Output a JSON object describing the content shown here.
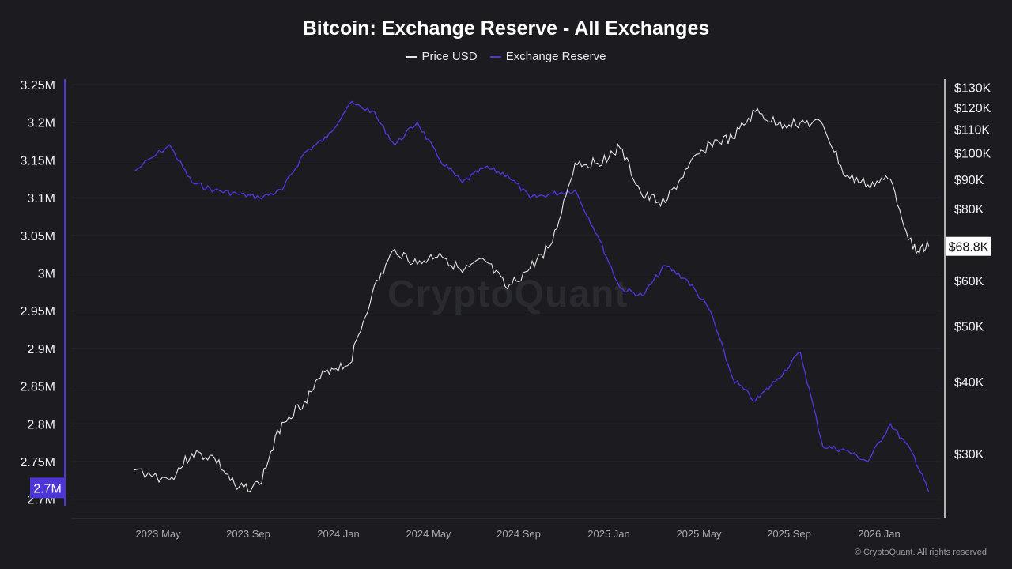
{
  "chart_data": {
    "type": "line",
    "title": "Bitcoin: Exchange Reserve - All Exchanges",
    "legend_position": "top-center",
    "grid": true,
    "x_ticks": [
      "2023 May",
      "2023 Sep",
      "2024 Jan",
      "2024 May",
      "2024 Sep",
      "2025 Jan",
      "2025 May",
      "2025 Sep",
      "2026 Jan"
    ],
    "y_left_ticks": [
      "3.25M",
      "3.2M",
      "3.15M",
      "3.1M",
      "3.05M",
      "3M",
      "2.95M",
      "2.9M",
      "2.85M",
      "2.8M",
      "2.75M",
      "2.7M"
    ],
    "y_left_range": [
      2.7,
      3.25
    ],
    "y_right_ticks": [
      "$130K",
      "$120K",
      "$110K",
      "$100K",
      "$90K",
      "$80K",
      "$60K",
      "$50K",
      "$40K",
      "$30K"
    ],
    "y_right_scale": "log",
    "x": [
      "2023-04",
      "2023-05",
      "2023-06",
      "2023-07",
      "2023-08",
      "2023-09",
      "2023-10",
      "2023-11",
      "2023-12",
      "2024-01",
      "2024-02",
      "2024-03",
      "2024-04",
      "2024-05",
      "2024-06",
      "2024-07",
      "2024-08",
      "2024-09",
      "2024-10",
      "2024-11",
      "2024-12",
      "2025-01",
      "2025-02",
      "2025-03",
      "2025-04",
      "2025-05",
      "2025-06",
      "2025-07",
      "2025-08",
      "2025-09",
      "2025-10",
      "2025-11",
      "2025-12",
      "2026-01",
      "2026-02",
      "2026-03"
    ],
    "series": [
      {
        "name": "Price USD",
        "axis": "right",
        "color": "#e6e6e6",
        "values": [
          28100,
          27000,
          30000,
          29500,
          26000,
          26500,
          34000,
          37000,
          42000,
          43000,
          57000,
          68000,
          64000,
          67000,
          62000,
          65000,
          58000,
          63000,
          70000,
          96000,
          96000,
          102000,
          84000,
          82000,
          94000,
          104000,
          106000,
          118000,
          112000,
          113000,
          112000,
          91000,
          88000,
          90000,
          68000,
          68800
        ]
      },
      {
        "name": "Exchange Reserve",
        "axis": "left",
        "color": "#4d36d6",
        "values": [
          3.135,
          3.17,
          3.12,
          3.11,
          3.105,
          3.1,
          3.11,
          3.16,
          3.18,
          3.225,
          3.215,
          3.17,
          3.2,
          3.15,
          3.12,
          3.14,
          3.13,
          3.1,
          3.105,
          3.11,
          3.05,
          2.98,
          2.97,
          3.01,
          2.99,
          2.95,
          2.86,
          2.83,
          2.86,
          2.895,
          2.77,
          2.765,
          2.75,
          2.8,
          2.76,
          2.71
        ]
      }
    ],
    "last_value_labels": {
      "price": "$68.8K",
      "reserve": "2.7M"
    }
  },
  "watermark": "CryptoQuant",
  "copyright": "© CryptoQuant. All rights reserved"
}
